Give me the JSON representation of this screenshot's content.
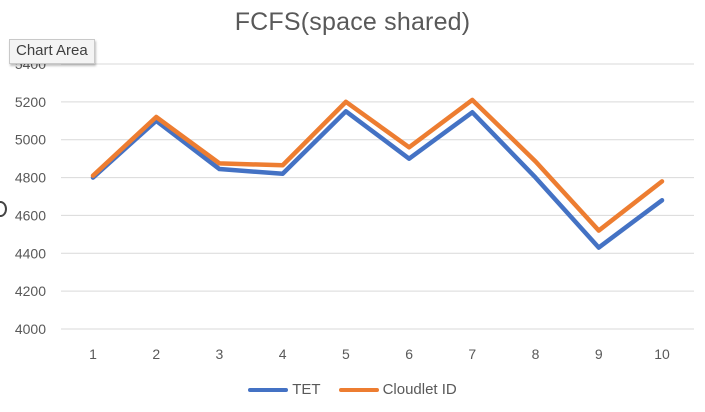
{
  "chart_data": {
    "type": "line",
    "title": "FCFS(space shared)",
    "xlabel": "",
    "ylabel": "",
    "categories": [
      "1",
      "2",
      "3",
      "4",
      "5",
      "6",
      "7",
      "8",
      "9",
      "10"
    ],
    "ylim": [
      4000,
      5400
    ],
    "yticks": [
      "4000",
      "4200",
      "4400",
      "4600",
      "4800",
      "5000",
      "5200",
      "5400"
    ],
    "grid": true,
    "legend_position": "bottom",
    "series": [
      {
        "name": "TET",
        "color": "#4472C4",
        "values": [
          4800,
          5100,
          4845,
          4820,
          5150,
          4900,
          5145,
          4800,
          4430,
          4680
        ]
      },
      {
        "name": "Cloudlet ID",
        "color": "#ED7D31",
        "values": [
          4810,
          5120,
          4875,
          4865,
          5200,
          4960,
          5210,
          4885,
          4520,
          4780
        ]
      }
    ]
  },
  "tooltip": {
    "text": "Chart Area"
  }
}
